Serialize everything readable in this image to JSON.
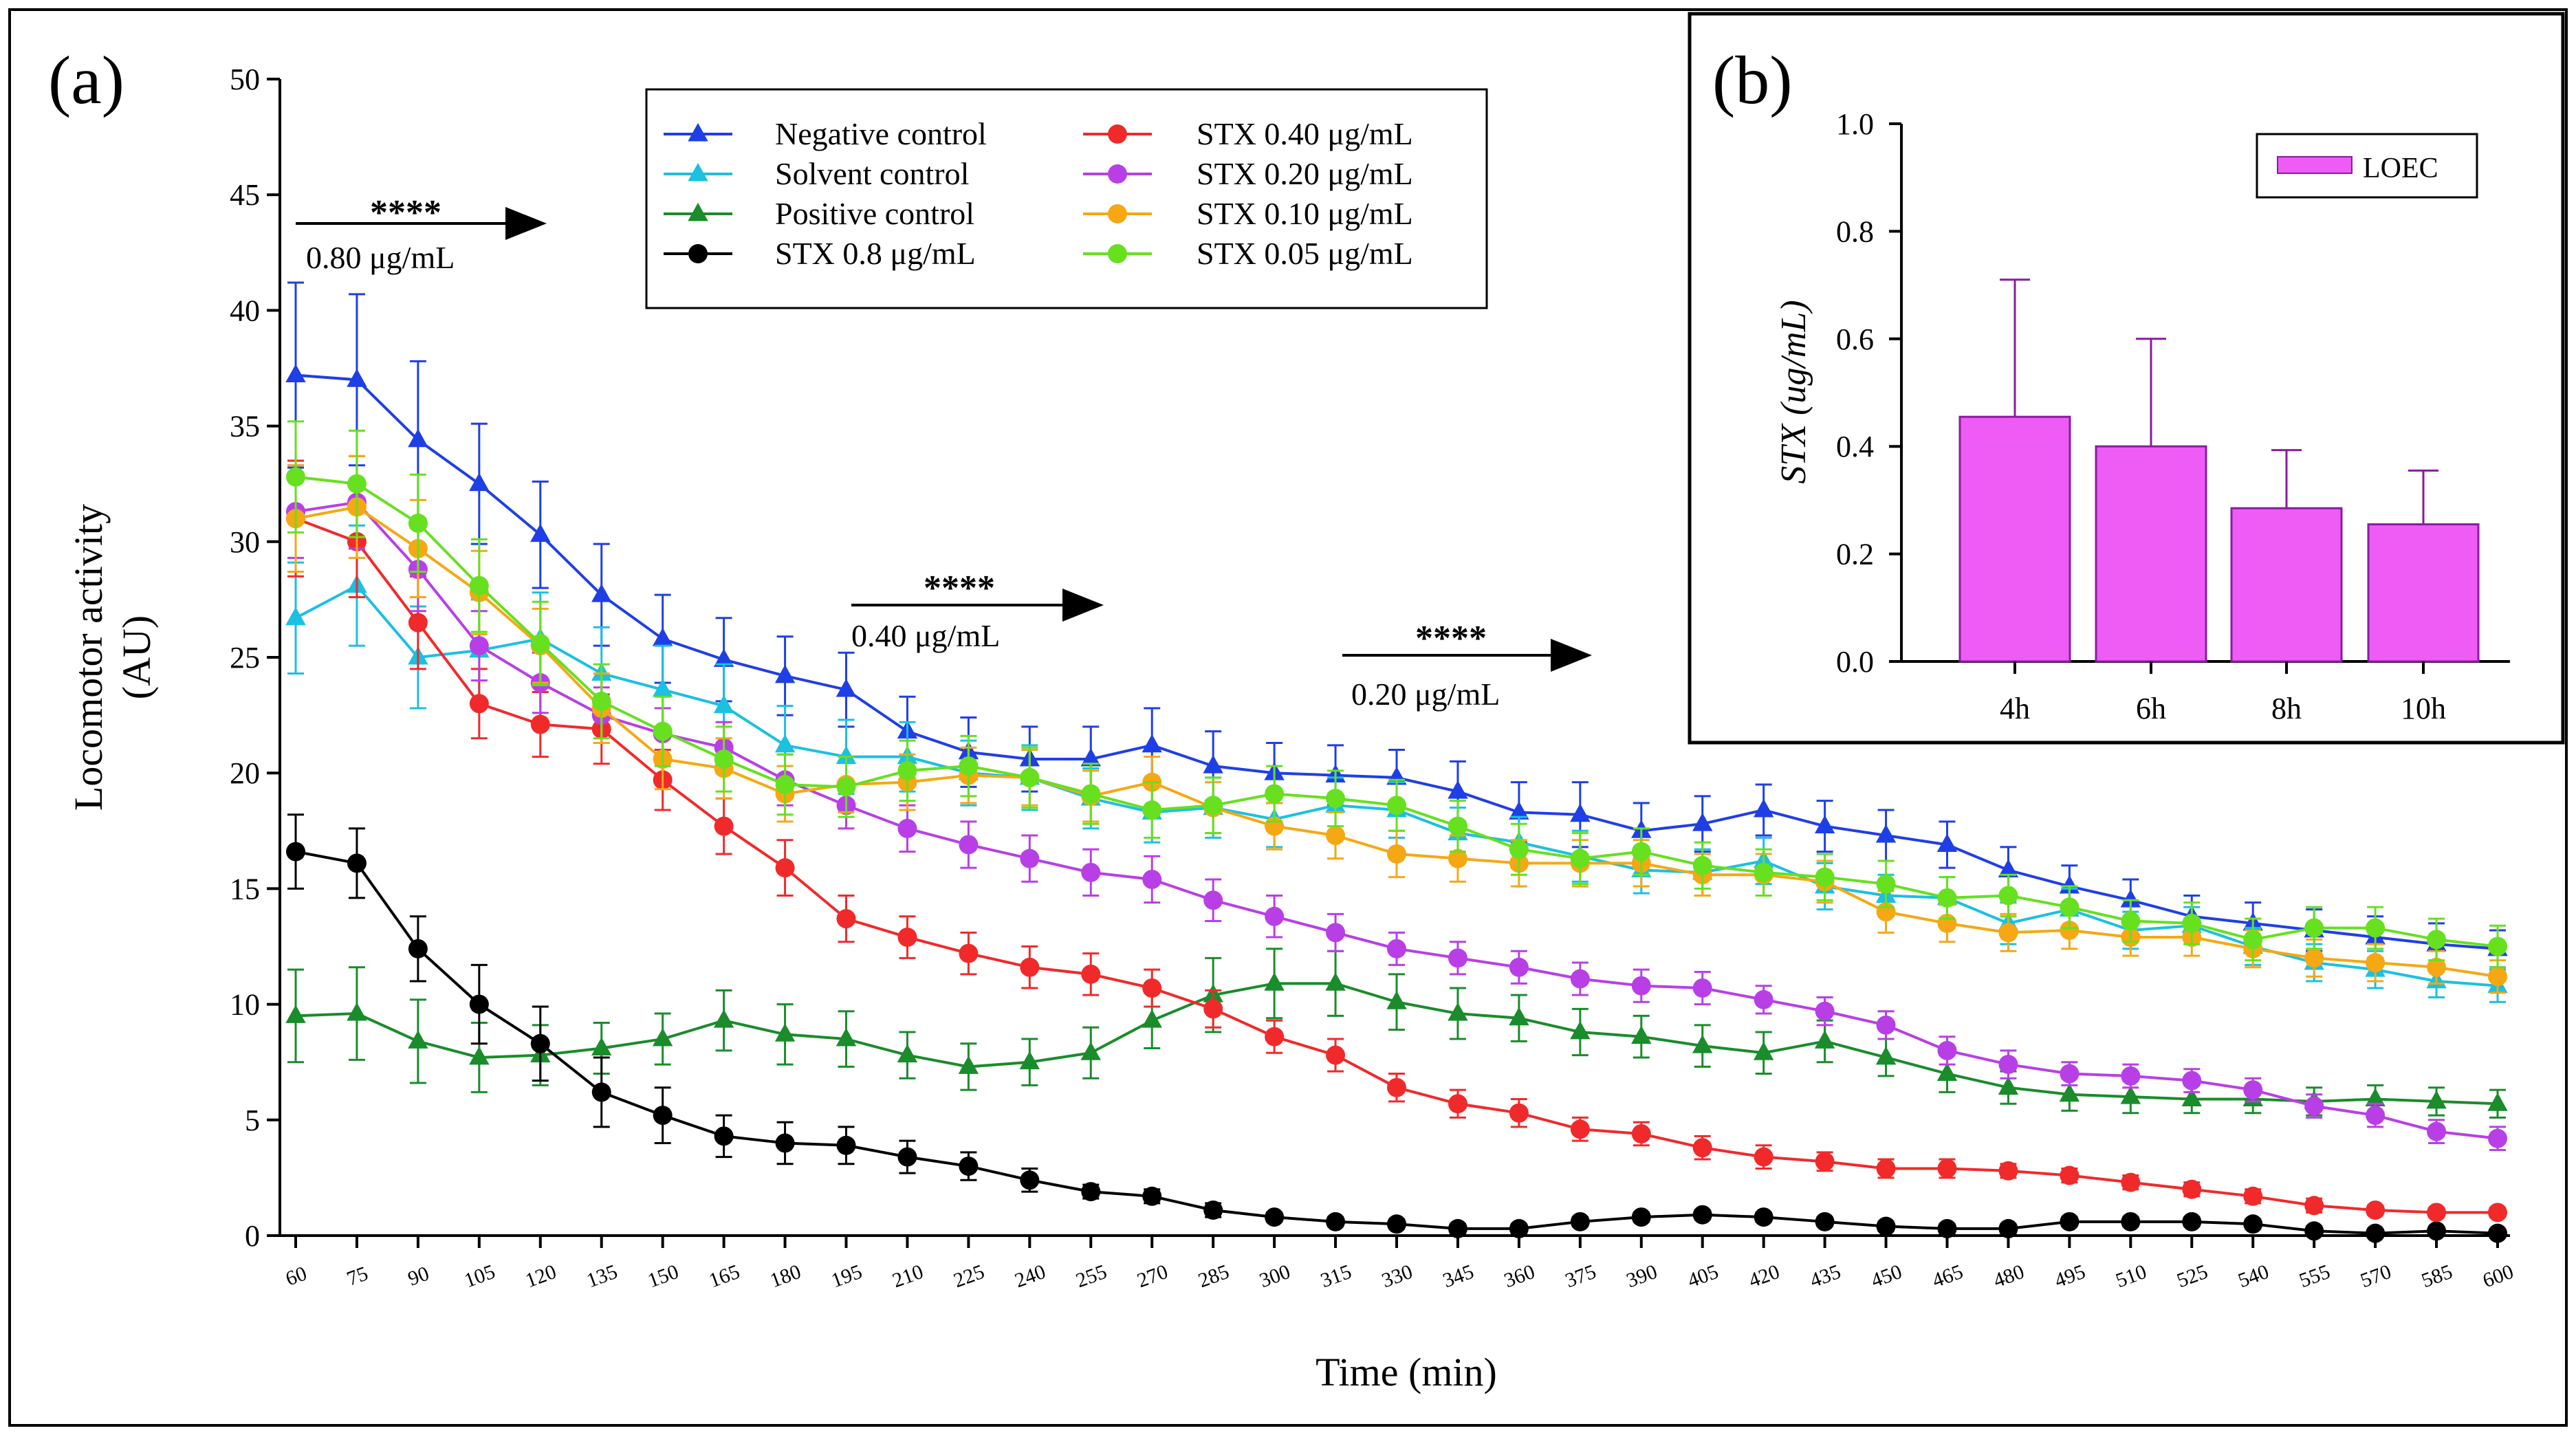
{
  "chart_data": [
    {
      "type": "line",
      "panel_label": "(a)",
      "xlabel": "Time (min)",
      "ylabel_line1": "Locomotor activity",
      "ylabel_line2": "(AU)",
      "ylim": [
        0,
        50
      ],
      "yticks": [
        "0",
        "5",
        "10",
        "15",
        "20",
        "25",
        "30",
        "35",
        "40",
        "45",
        "50"
      ],
      "x": [
        60,
        75,
        90,
        105,
        120,
        135,
        150,
        165,
        180,
        195,
        210,
        225,
        240,
        255,
        270,
        285,
        300,
        315,
        330,
        345,
        360,
        375,
        390,
        405,
        420,
        435,
        450,
        465,
        480,
        495,
        510,
        525,
        540,
        555,
        570,
        585,
        600
      ],
      "legend": {
        "placement": "top-center",
        "columns": 2
      },
      "series": [
        {
          "name": "Negative control",
          "color": "#1f3fe6",
          "marker": "triangle",
          "values": [
            37.2,
            37.0,
            34.4,
            32.5,
            30.3,
            27.7,
            25.8,
            24.9,
            24.2,
            23.6,
            21.8,
            20.9,
            20.6,
            20.6,
            21.2,
            20.3,
            20.0,
            19.9,
            19.8,
            19.2,
            18.3,
            18.2,
            17.5,
            17.8,
            18.4,
            17.7,
            17.3,
            16.9,
            15.8,
            15.1,
            14.5,
            13.8,
            13.5,
            13.2,
            12.9,
            12.6,
            12.4
          ],
          "errors": [
            4.0,
            3.7,
            3.4,
            2.6,
            2.3,
            2.2,
            1.9,
            1.8,
            1.7,
            1.6,
            1.5,
            1.5,
            1.4,
            1.4,
            1.6,
            1.5,
            1.3,
            1.3,
            1.2,
            1.3,
            1.3,
            1.4,
            1.2,
            1.2,
            1.1,
            1.1,
            1.1,
            1.0,
            1.0,
            0.9,
            0.9,
            0.9,
            0.9,
            0.9,
            0.9,
            0.9,
            0.8
          ]
        },
        {
          "name": "Solvent control",
          "color": "#1cc0e0",
          "marker": "triangle",
          "values": [
            26.7,
            28.1,
            25.0,
            25.3,
            25.8,
            24.3,
            23.6,
            22.9,
            21.2,
            20.7,
            20.7,
            20.0,
            19.8,
            18.9,
            18.3,
            18.5,
            18.0,
            18.6,
            18.4,
            17.4,
            17.0,
            16.4,
            15.8,
            15.7,
            16.2,
            15.1,
            14.7,
            14.6,
            13.5,
            14.1,
            13.2,
            13.4,
            12.5,
            11.8,
            11.5,
            11.0,
            10.8
          ],
          "errors": [
            2.4,
            2.6,
            2.2,
            2.2,
            2.0,
            2.0,
            1.9,
            1.8,
            1.7,
            1.6,
            1.5,
            1.4,
            1.4,
            1.3,
            1.3,
            1.3,
            1.2,
            1.2,
            1.2,
            1.1,
            1.1,
            1.1,
            1.0,
            1.0,
            1.0,
            1.0,
            0.9,
            0.9,
            0.9,
            0.9,
            0.8,
            0.8,
            0.8,
            0.8,
            0.8,
            0.7,
            0.7
          ]
        },
        {
          "name": "Positive control",
          "color": "#1a8c2b",
          "marker": "triangle",
          "values": [
            9.5,
            9.6,
            8.4,
            7.7,
            7.8,
            8.1,
            8.5,
            9.3,
            8.7,
            8.5,
            7.8,
            7.3,
            7.5,
            7.9,
            9.3,
            10.4,
            10.9,
            10.9,
            10.1,
            9.6,
            9.4,
            8.8,
            8.6,
            8.2,
            7.9,
            8.4,
            7.7,
            7.0,
            6.4,
            6.1,
            6.0,
            5.9,
            5.9,
            5.8,
            5.9,
            5.8,
            5.7
          ],
          "errors": [
            2.0,
            2.0,
            1.8,
            1.5,
            1.3,
            1.1,
            1.1,
            1.3,
            1.3,
            1.2,
            1.0,
            1.0,
            1.0,
            1.1,
            1.2,
            1.6,
            1.5,
            1.4,
            1.2,
            1.1,
            1.0,
            1.0,
            0.9,
            0.9,
            0.9,
            0.9,
            0.8,
            0.8,
            0.7,
            0.7,
            0.7,
            0.6,
            0.6,
            0.6,
            0.6,
            0.6,
            0.6
          ]
        },
        {
          "name": "STX 0.8 μg/mL",
          "color": "#000000",
          "marker": "circle",
          "values": [
            16.6,
            16.1,
            12.4,
            10.0,
            8.3,
            6.2,
            5.2,
            4.3,
            4.0,
            3.9,
            3.4,
            3.0,
            2.4,
            1.9,
            1.7,
            1.1,
            0.8,
            0.6,
            0.5,
            0.3,
            0.3,
            0.6,
            0.8,
            0.9,
            0.8,
            0.6,
            0.4,
            0.3,
            0.3,
            0.6,
            0.6,
            0.6,
            0.5,
            0.2,
            0.1,
            0.2,
            0.1
          ],
          "errors": [
            1.6,
            1.5,
            1.4,
            1.7,
            1.6,
            1.5,
            1.2,
            0.9,
            0.9,
            0.8,
            0.7,
            0.6,
            0.5,
            0.3,
            0.3,
            0.3,
            0.2,
            0.2,
            0.2,
            0.2,
            0.2,
            0.2,
            0.2,
            0.2,
            0.2,
            0.2,
            0.2,
            0.2,
            0.2,
            0.2,
            0.2,
            0.2,
            0.2,
            0.2,
            0.1,
            0.1,
            0.1
          ]
        },
        {
          "name": "STX 0.40 μg/mL",
          "color": "#f02a2a",
          "marker": "circle",
          "values": [
            31.0,
            30.0,
            26.5,
            23.0,
            22.1,
            21.9,
            19.7,
            17.7,
            15.9,
            13.7,
            12.9,
            12.2,
            11.6,
            11.3,
            10.7,
            9.8,
            8.6,
            7.8,
            6.4,
            5.7,
            5.3,
            4.6,
            4.4,
            3.8,
            3.4,
            3.2,
            2.9,
            2.9,
            2.8,
            2.6,
            2.3,
            2.0,
            1.7,
            1.3,
            1.1,
            1.0,
            1.0
          ],
          "errors": [
            2.5,
            2.4,
            2.0,
            1.5,
            1.4,
            1.5,
            1.3,
            1.2,
            1.2,
            1.0,
            0.9,
            0.9,
            0.9,
            0.9,
            0.8,
            0.8,
            0.7,
            0.7,
            0.6,
            0.6,
            0.6,
            0.5,
            0.5,
            0.5,
            0.5,
            0.4,
            0.4,
            0.4,
            0.3,
            0.3,
            0.3,
            0.3,
            0.3,
            0.3,
            0.2,
            0.2,
            0.2
          ]
        },
        {
          "name": "STX 0.20 μg/mL",
          "color": "#b83fe6",
          "marker": "circle",
          "values": [
            31.3,
            31.7,
            28.8,
            25.5,
            23.9,
            22.5,
            21.7,
            21.1,
            19.7,
            18.6,
            17.6,
            16.9,
            16.3,
            15.7,
            15.4,
            14.5,
            13.8,
            13.1,
            12.4,
            12.0,
            11.6,
            11.1,
            10.8,
            10.7,
            10.2,
            9.7,
            9.1,
            8.0,
            7.4,
            7.0,
            6.9,
            6.7,
            6.3,
            5.6,
            5.2,
            4.5,
            4.2
          ],
          "errors": [
            2.0,
            2.0,
            1.8,
            1.5,
            1.3,
            1.2,
            1.1,
            1.1,
            1.1,
            1.0,
            1.0,
            1.0,
            1.0,
            1.0,
            1.0,
            0.9,
            0.9,
            0.8,
            0.7,
            0.7,
            0.7,
            0.7,
            0.7,
            0.7,
            0.6,
            0.6,
            0.6,
            0.6,
            0.6,
            0.5,
            0.5,
            0.5,
            0.5,
            0.5,
            0.5,
            0.5,
            0.5
          ]
        },
        {
          "name": "STX 0.10 μg/mL",
          "color": "#f5a814",
          "marker": "circle",
          "values": [
            31.0,
            31.5,
            29.7,
            27.8,
            25.5,
            22.8,
            20.6,
            20.2,
            19.1,
            19.5,
            19.6,
            19.9,
            19.8,
            19.0,
            19.6,
            18.5,
            17.7,
            17.3,
            16.5,
            16.3,
            16.1,
            16.1,
            16.1,
            15.6,
            15.6,
            15.3,
            14.0,
            13.5,
            13.1,
            13.2,
            12.9,
            12.9,
            12.4,
            12.0,
            11.8,
            11.6,
            11.2
          ],
          "errors": [
            2.3,
            2.2,
            2.1,
            1.8,
            1.6,
            1.5,
            1.3,
            1.3,
            1.2,
            1.2,
            1.2,
            1.2,
            1.2,
            1.1,
            1.1,
            1.1,
            1.0,
            1.0,
            1.0,
            1.0,
            1.0,
            1.0,
            1.0,
            0.9,
            0.9,
            0.9,
            0.9,
            0.8,
            0.8,
            0.8,
            0.8,
            0.8,
            0.8,
            0.8,
            0.8,
            0.7,
            0.7
          ]
        },
        {
          "name": "STX 0.05 μg/mL",
          "color": "#66e01f",
          "marker": "circle",
          "values": [
            32.8,
            32.5,
            30.8,
            28.1,
            25.6,
            23.1,
            21.8,
            20.6,
            19.5,
            19.4,
            20.1,
            20.3,
            19.8,
            19.1,
            18.4,
            18.6,
            19.1,
            18.9,
            18.6,
            17.7,
            16.7,
            16.3,
            16.6,
            16.0,
            15.7,
            15.5,
            15.2,
            14.6,
            14.7,
            14.2,
            13.6,
            13.5,
            12.8,
            13.3,
            13.3,
            12.8,
            12.5
          ],
          "errors": [
            2.4,
            2.3,
            2.1,
            2.0,
            1.8,
            1.6,
            1.5,
            1.4,
            1.3,
            1.3,
            1.3,
            1.3,
            1.3,
            1.3,
            1.2,
            1.2,
            1.2,
            1.2,
            1.1,
            1.1,
            1.1,
            1.1,
            1.0,
            1.0,
            1.0,
            1.0,
            1.0,
            0.9,
            0.9,
            0.9,
            0.9,
            0.9,
            0.9,
            0.9,
            0.9,
            0.9,
            0.9
          ]
        }
      ],
      "annotations": [
        {
          "stars": "****",
          "label": "0.80 μg/mL",
          "x_start": 60,
          "x_end": 90
        },
        {
          "stars": "****",
          "label": "0.40 μg/mL",
          "x_start": 195,
          "x_end": 225
        },
        {
          "stars": "****",
          "label": "0.20 μg/mL",
          "x_start": 330,
          "x_end": 360
        }
      ]
    },
    {
      "type": "bar",
      "panel_label": "(b)",
      "ylabel": "STX (ug/mL)",
      "ylim": [
        0,
        1.0
      ],
      "yticks": [
        "0.0",
        "0.2",
        "0.4",
        "0.6",
        "0.8",
        "1.0"
      ],
      "categories": [
        "4h",
        "6h",
        "8h",
        "10h"
      ],
      "values": [
        0.455,
        0.4,
        0.285,
        0.255
      ],
      "errors": [
        0.255,
        0.2,
        0.108,
        0.1
      ],
      "color": "#ee5cf5",
      "edge_color": "#8a1ba0",
      "legend": {
        "placement": "top-right",
        "label": "LOEC"
      }
    }
  ]
}
